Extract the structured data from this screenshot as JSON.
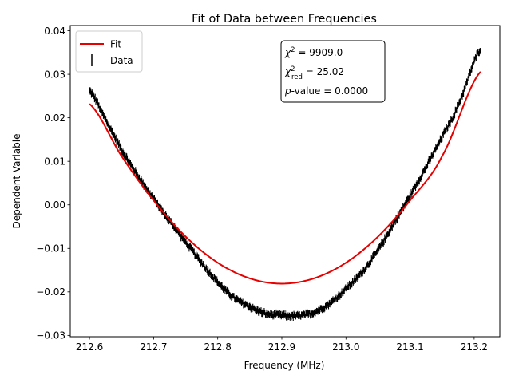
{
  "chart_data": {
    "type": "line",
    "title": "Fit of Data between Frequencies",
    "xlabel": "Frequency (MHz)",
    "ylabel": "Dependent Variable",
    "xlim": [
      212.57,
      213.24
    ],
    "ylim": [
      -0.0303,
      0.0412
    ],
    "xticks": [
      212.6,
      212.7,
      212.8,
      212.9,
      213.0,
      213.1,
      213.2
    ],
    "xtick_labels": [
      "212.6",
      "212.7",
      "212.8",
      "212.9",
      "213.0",
      "213.1",
      "213.2"
    ],
    "yticks": [
      -0.03,
      -0.02,
      -0.01,
      0.0,
      0.01,
      0.02,
      0.03,
      0.04
    ],
    "ytick_labels": [
      "−0.03",
      "−0.02",
      "−0.01",
      "0.00",
      "0.01",
      "0.02",
      "0.03",
      "0.04"
    ],
    "grid": false,
    "legend": {
      "placement": "top-left",
      "entries": [
        {
          "label": "Fit",
          "color": "#e60000",
          "marker": "line"
        },
        {
          "label": "Data",
          "color": "#000000",
          "marker": "errorbar"
        }
      ]
    },
    "annotation": {
      "placement": "top-center",
      "chi2_label": "χ",
      "chi2_sup": "2",
      "chi2_value": " = 9909.0",
      "chired_label": "χ",
      "chired_sup": "2",
      "chired_sub": "red",
      "chired_value": " = 25.02",
      "p_label": "p",
      "p_value": "-value = 0.0000"
    },
    "series": [
      {
        "name": "Fit",
        "kind": "line",
        "color": "#e60000",
        "x": [
          212.6,
          212.65,
          212.7,
          212.75,
          212.8,
          212.85,
          212.9,
          212.95,
          213.0,
          213.05,
          213.1,
          213.15,
          213.21
        ],
        "y": [
          0.0232,
          0.0112,
          0.001,
          -0.0073,
          -0.0133,
          -0.0169,
          -0.0181,
          -0.0169,
          -0.0133,
          -0.0073,
          0.001,
          0.0112,
          0.0306
        ]
      },
      {
        "name": "Data",
        "kind": "errorbar",
        "color": "#000000",
        "x": [
          212.6,
          212.625,
          212.65,
          212.675,
          212.7,
          212.725,
          212.75,
          212.775,
          212.8,
          212.825,
          212.85,
          212.875,
          212.9,
          212.925,
          212.95,
          212.975,
          213.0,
          213.025,
          213.05,
          213.075,
          213.1,
          213.125,
          213.15,
          213.175,
          213.21
        ],
        "y": [
          0.0262,
          0.0196,
          0.0127,
          0.0068,
          0.0014,
          -0.0037,
          -0.0085,
          -0.0133,
          -0.0178,
          -0.0213,
          -0.0234,
          -0.025,
          -0.0254,
          -0.0255,
          -0.0247,
          -0.0226,
          -0.0193,
          -0.0155,
          -0.0104,
          -0.0042,
          0.0021,
          0.0087,
          0.0156,
          0.023,
          0.0358
        ]
      }
    ]
  }
}
